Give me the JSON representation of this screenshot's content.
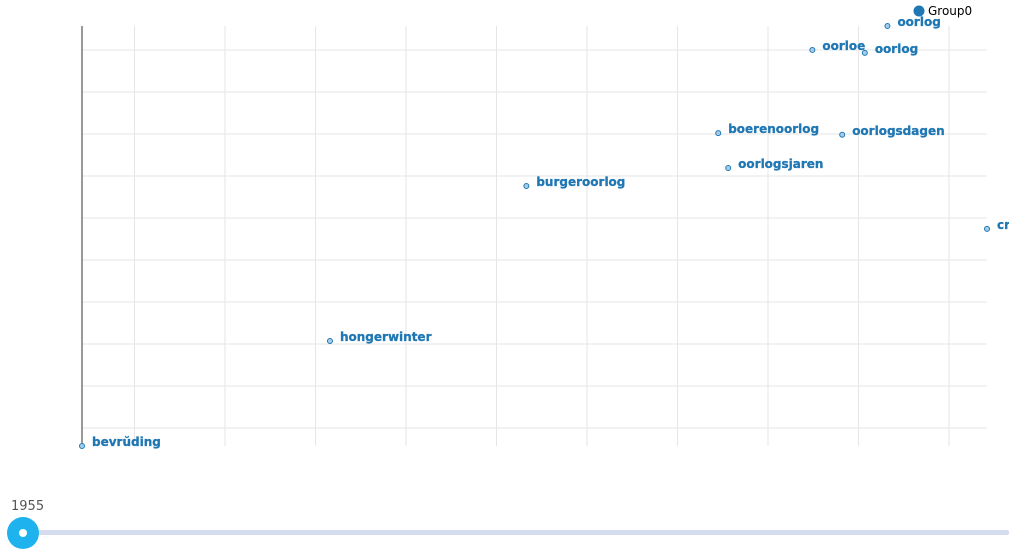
{
  "chart_data": {
    "type": "scatter",
    "title": "",
    "xlabel": "",
    "ylabel": "",
    "xlim": [
      0,
      100
    ],
    "ylim": [
      0,
      100
    ],
    "grid": true,
    "legend": {
      "position": "top-right",
      "entries": [
        "Group0"
      ]
    },
    "series": [
      {
        "name": "Group0",
        "color": "#1f77b4",
        "points": [
          {
            "label": "bevrŭding",
            "x": 0,
            "y": 0
          },
          {
            "label": "hongerwinter",
            "x": 27.4,
            "y": 25
          },
          {
            "label": "burgeroorlog",
            "x": 49.1,
            "y": 61.9
          },
          {
            "label": "oorlogsjaren",
            "x": 71.4,
            "y": 66.2
          },
          {
            "label": "boerenoorlog",
            "x": 70.3,
            "y": 74.5
          },
          {
            "label": "oorlogsdagen",
            "x": 84,
            "y": 74.1
          },
          {
            "label": "oorloe",
            "x": 80.7,
            "y": 94.3
          },
          {
            "label": "oorlog",
            "x": 86.5,
            "y": 93.6
          },
          {
            "label": "oorlog",
            "x": 89,
            "y": 100
          },
          {
            "label": "cr",
            "x": 100,
            "y": 51.7
          }
        ]
      }
    ]
  },
  "slider": {
    "year_label": "1955",
    "value": 1955
  }
}
